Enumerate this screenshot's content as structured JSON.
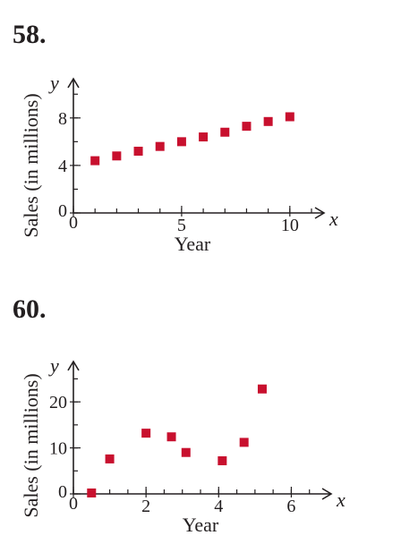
{
  "problems": [
    {
      "number": "58."
    },
    {
      "number": "60."
    }
  ],
  "chart_data": [
    {
      "type": "scatter",
      "title": "",
      "xlabel": "Year",
      "ylabel": "Sales (in millions)",
      "x_var": "x",
      "y_var": "y",
      "xlim": [
        0,
        11
      ],
      "ylim": [
        0,
        11
      ],
      "x_ticks": [
        0,
        5,
        10
      ],
      "y_ticks": [
        0,
        4,
        8
      ],
      "marker_color": "#c8102e",
      "x": [
        1,
        2,
        3,
        4,
        5,
        6,
        7,
        8,
        9,
        10
      ],
      "y": [
        4.4,
        4.8,
        5.2,
        5.6,
        6.0,
        6.4,
        6.8,
        7.3,
        7.7,
        8.1
      ]
    },
    {
      "type": "scatter",
      "title": "",
      "xlabel": "Year",
      "ylabel": "Sales (in millions)",
      "x_var": "x",
      "y_var": "y",
      "xlim": [
        0,
        7
      ],
      "ylim": [
        0,
        28
      ],
      "x_ticks": [
        0,
        2,
        4,
        6
      ],
      "y_ticks": [
        0,
        10,
        20
      ],
      "marker_color": "#c8102e",
      "x": [
        0.5,
        1.0,
        2.0,
        2.7,
        3.1,
        4.1,
        4.7,
        5.2
      ],
      "y": [
        0.2,
        7.6,
        13.2,
        12.4,
        9.0,
        7.2,
        11.2,
        22.8
      ]
    }
  ]
}
